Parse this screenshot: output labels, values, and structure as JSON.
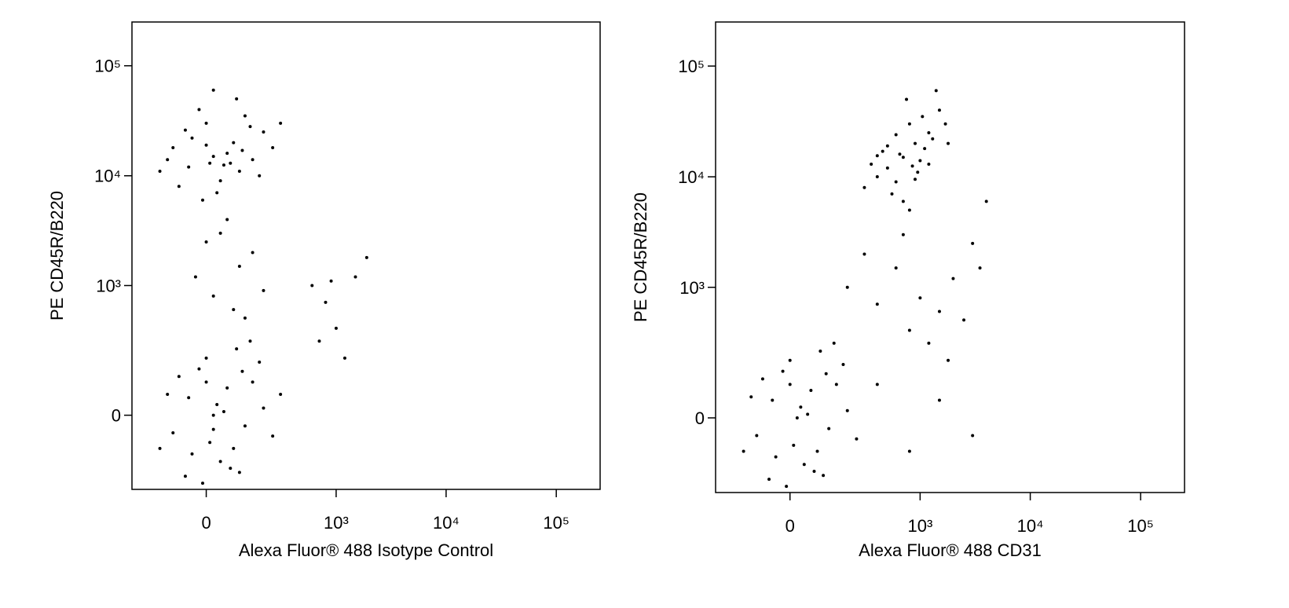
{
  "chart_data": [
    {
      "type": "scatter",
      "scale": "biexponential",
      "color": "#000000",
      "x_label": "Alexa Fluor® 488 Isotype Control",
      "y_label": "PE CD45R/B220",
      "xlim": [
        -300,
        250000
      ],
      "ylim": [
        -300,
        250000
      ],
      "xticks": [
        0,
        {
          "value": 1000,
          "label": "10³"
        },
        {
          "value": 10000,
          "label": "10⁴"
        },
        {
          "value": 100000,
          "label": "10⁵"
        }
      ],
      "yticks": [
        0,
        {
          "value": 1000,
          "label": "10³"
        },
        {
          "value": 10000,
          "label": "10⁴"
        },
        {
          "value": 100000,
          "label": "10⁵"
        }
      ],
      "x": [
        20,
        -50,
        80,
        150,
        0,
        -100,
        40,
        200,
        -20,
        100,
        60,
        -80,
        120,
        10,
        180,
        -40,
        90,
        30,
        250,
        -120,
        70,
        0,
        140,
        -60,
        50,
        110,
        -10,
        300,
        20,
        -150,
        40,
        100,
        20,
        150,
        -30,
        80,
        60,
        200,
        0,
        120,
        20,
        -50,
        80,
        150,
        0,
        -100,
        40,
        200,
        -20,
        100,
        60,
        -80,
        120,
        10,
        180,
        -40,
        90,
        30,
        250,
        -120,
        70,
        0,
        140,
        -60,
        50,
        110,
        -10,
        300,
        20,
        -150,
        600,
        800,
        1000,
        1500,
        1900,
        700,
        1200,
        900
      ],
      "y": [
        15000,
        12000,
        20000,
        14000,
        30000,
        18000,
        9000,
        25000,
        40000,
        11000,
        16000,
        8000,
        35000,
        13000,
        10000,
        22000,
        50000,
        7000,
        18000,
        14000,
        13000,
        19000,
        28000,
        26000,
        12500,
        17000,
        6000,
        30000,
        60000,
        11000,
        3000,
        1500,
        800,
        2000,
        1200,
        600,
        4000,
        900,
        2500,
        500,
        0,
        50,
        -100,
        100,
        200,
        -50,
        -150,
        20,
        150,
        -200,
        80,
        120,
        -30,
        -80,
        180,
        -120,
        250,
        30,
        -60,
        60,
        -180,
        100,
        300,
        -220,
        10,
        140,
        -260,
        60,
        -40,
        -100,
        1000,
        700,
        400,
        1200,
        1800,
        300,
        200,
        1100
      ]
    },
    {
      "type": "scatter",
      "scale": "biexponential",
      "color": "#000000",
      "x_label": "Alexa Fluor® 488 CD31",
      "y_label": "PE CD45R/B220",
      "xlim": [
        -300,
        250000
      ],
      "ylim": [
        -300,
        250000
      ],
      "xticks": [
        0,
        {
          "value": 1000,
          "label": "10³"
        },
        {
          "value": 10000,
          "label": "10⁴"
        },
        {
          "value": 100000,
          "label": "10⁵"
        }
      ],
      "yticks": [
        0,
        {
          "value": 1000,
          "label": "10³"
        },
        {
          "value": 10000,
          "label": "10⁴"
        },
        {
          "value": 100000,
          "label": "10⁵"
        }
      ],
      "x": [
        700,
        500,
        900,
        1200,
        400,
        800,
        600,
        1500,
        1000,
        350,
        1100,
        750,
        550,
        1300,
        450,
        950,
        650,
        1700,
        850,
        300,
        1050,
        700,
        1400,
        500,
        900,
        600,
        1200,
        800,
        1800,
        400,
        300,
        600,
        1000,
        1500,
        2000,
        3000,
        800,
        1200,
        400,
        2500,
        1800,
        3500,
        700,
        4000,
        200,
        20,
        -50,
        80,
        150,
        0,
        -100,
        40,
        200,
        -20,
        100,
        60,
        -80,
        120,
        10,
        180,
        -40,
        90,
        30,
        250,
        -120,
        70,
        0,
        140,
        -60,
        50,
        110,
        -10,
        -150,
        400,
        800,
        1500,
        3000
      ],
      "y": [
        15000,
        12000,
        20000,
        25000,
        10000,
        30000,
        9000,
        40000,
        14000,
        13000,
        18000,
        50000,
        7000,
        22000,
        17000,
        11000,
        16000,
        30000,
        12500,
        8000,
        35000,
        6000,
        60000,
        19000,
        9500,
        24000,
        13000,
        5000,
        20000,
        15500,
        2000,
        1500,
        800,
        600,
        1200,
        2500,
        400,
        300,
        700,
        500,
        200,
        1500,
        3000,
        6000,
        1000,
        0,
        50,
        -100,
        100,
        200,
        -50,
        -150,
        20,
        150,
        -200,
        80,
        120,
        -30,
        -80,
        180,
        -120,
        250,
        30,
        -60,
        60,
        -180,
        100,
        300,
        -220,
        10,
        140,
        -260,
        -100,
        100,
        -100,
        50,
        -50
      ]
    }
  ]
}
